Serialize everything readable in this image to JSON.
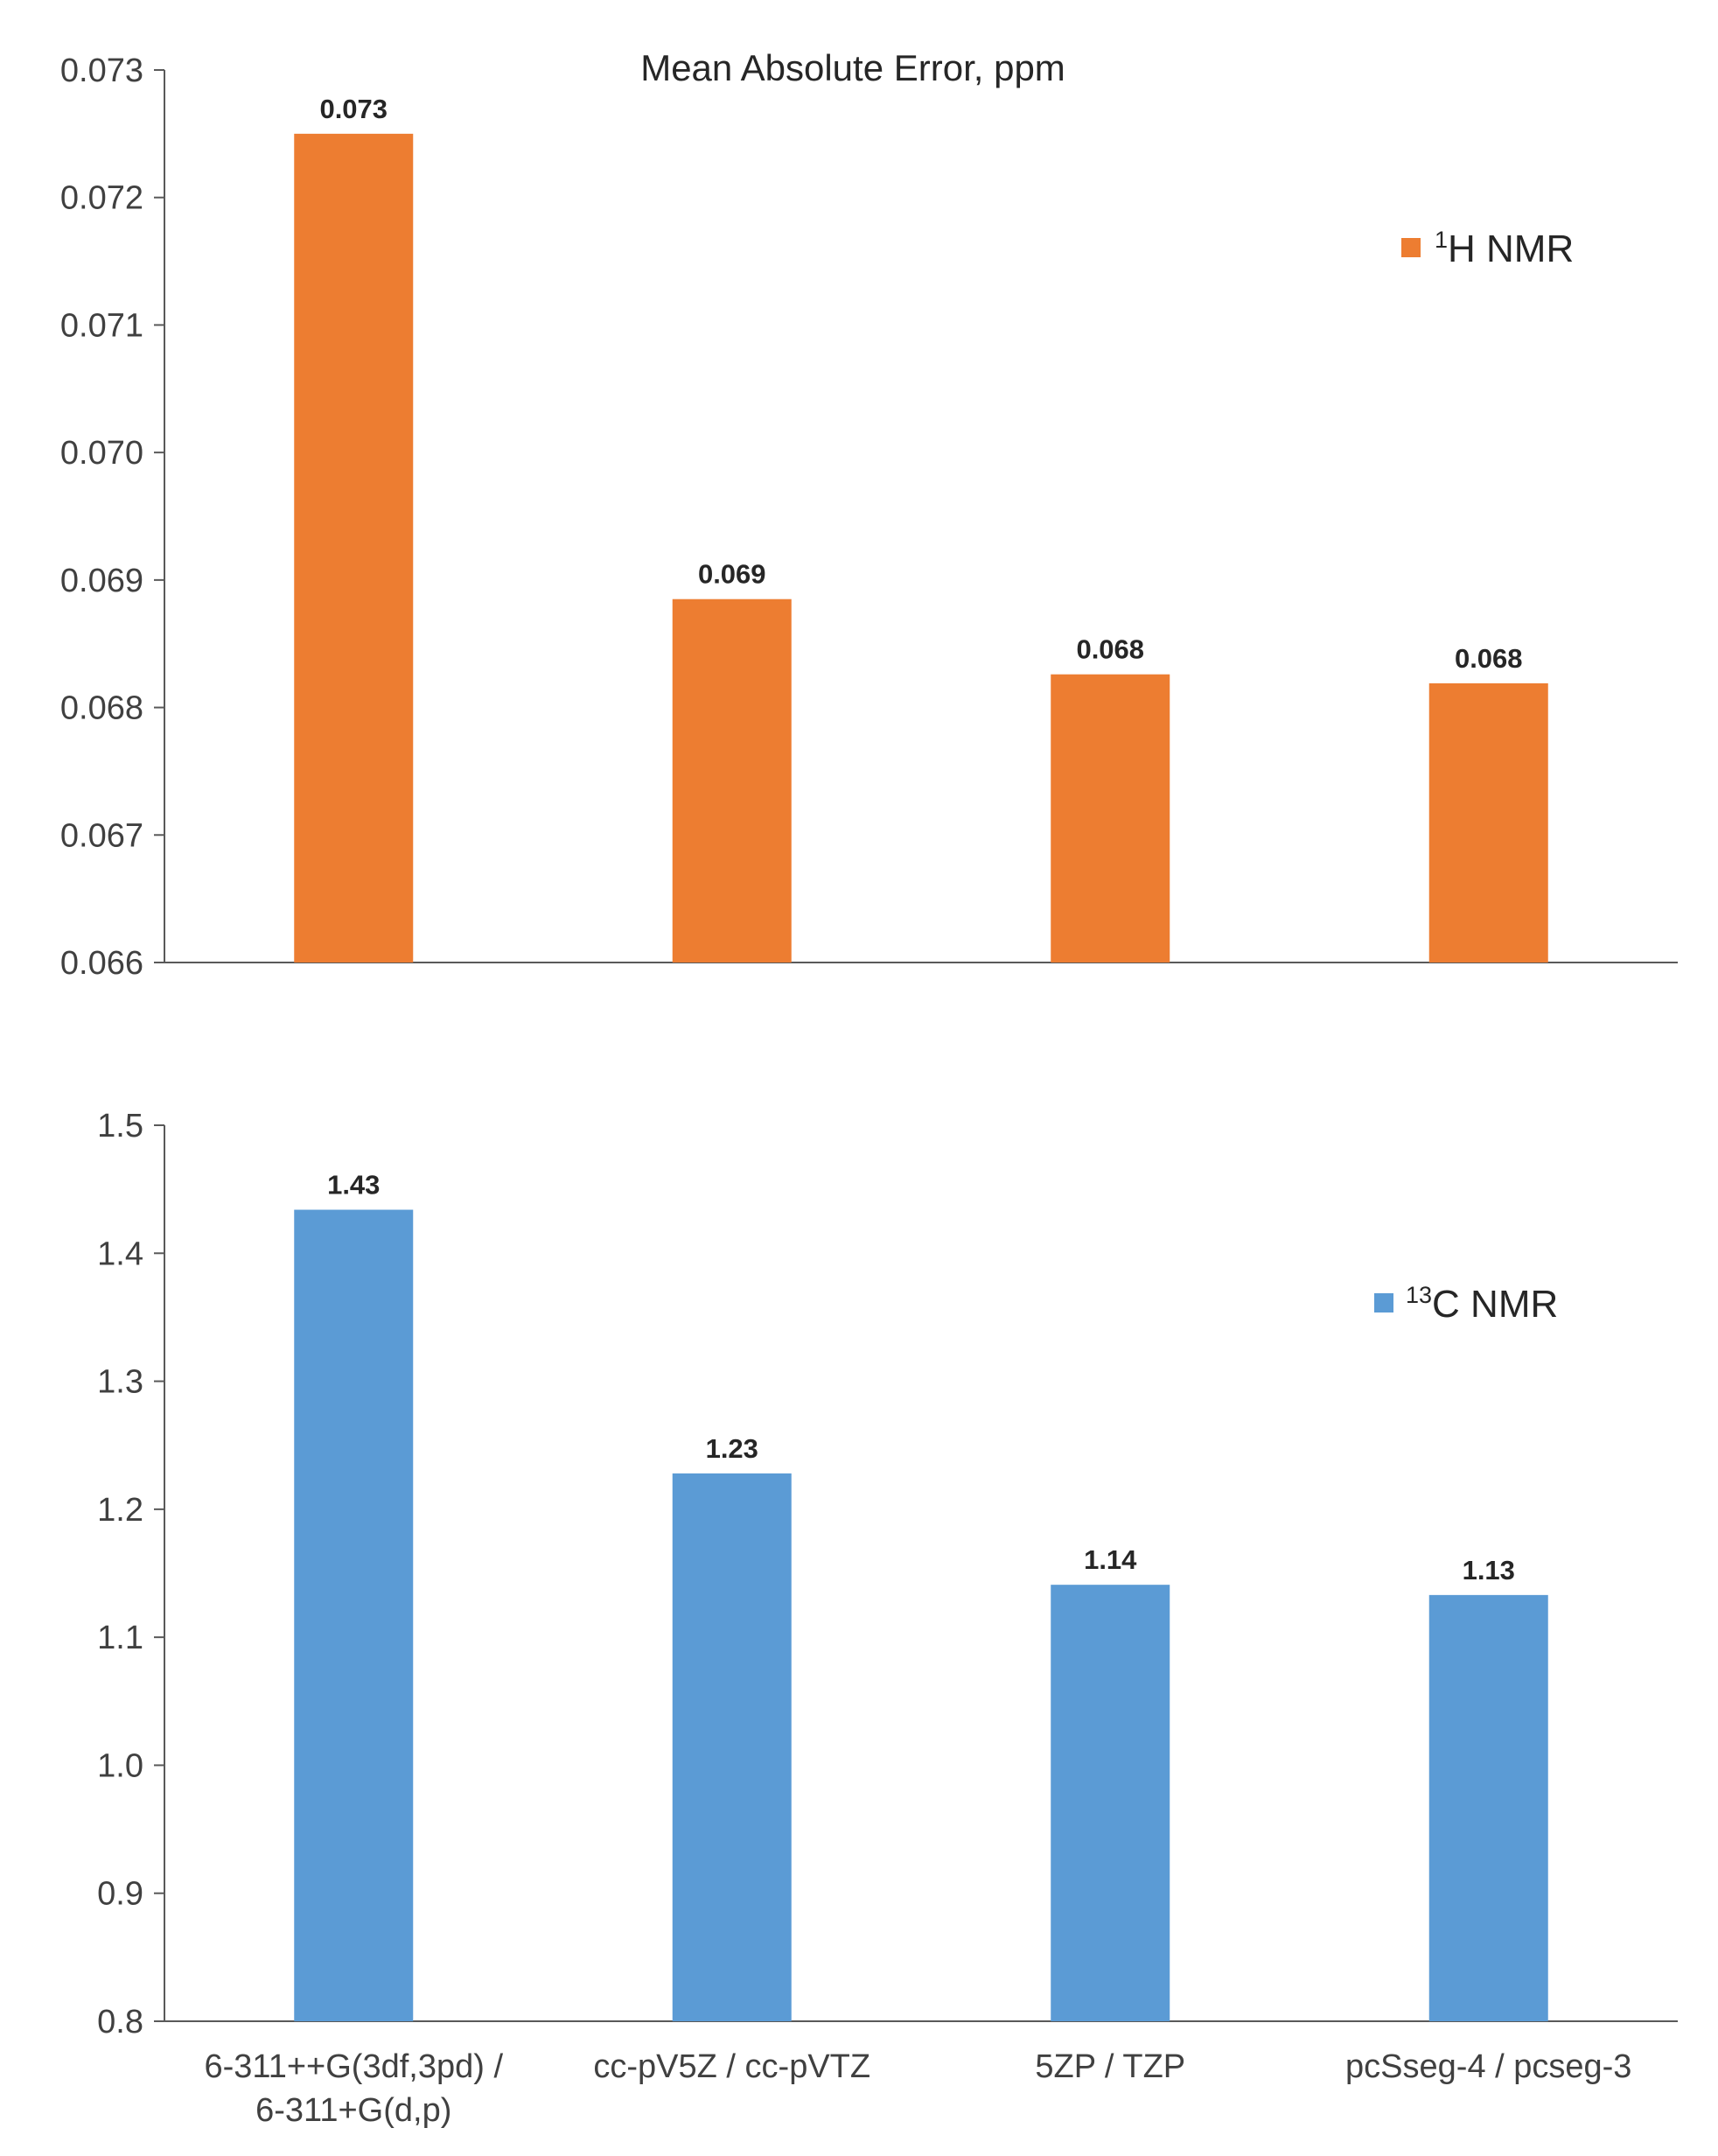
{
  "chart_data": [
    {
      "type": "bar",
      "title": "Mean Absolute Error, ppm",
      "xlabel": "",
      "ylabel": "",
      "categories": [
        "6-311++G(3df,3pd) / 6-311+G(d,p)",
        "cc-pV5Z / cc-pVTZ",
        "5ZP / TZP",
        "pcSseg-4 / pcseg-3"
      ],
      "series": [
        {
          "name": "1H NMR",
          "legend_sup": "1",
          "legend_main": "H NMR",
          "color": "#ED7D31",
          "values": [
            0.0725,
            0.06885,
            0.06826,
            0.06819
          ],
          "data_labels": [
            "0.073",
            "0.069",
            "0.068",
            "0.068"
          ]
        }
      ],
      "ylim": [
        0.066,
        0.073
      ],
      "yticks": [
        0.066,
        0.067,
        0.068,
        0.069,
        0.07,
        0.071,
        0.072,
        0.073
      ],
      "ytick_labels": [
        "0.066",
        "0.067",
        "0.068",
        "0.069",
        "0.070",
        "0.071",
        "0.072",
        "0.073"
      ],
      "grid": false,
      "legend_position": "top-right"
    },
    {
      "type": "bar",
      "title": "",
      "xlabel": "",
      "ylabel": "",
      "categories": [
        "6-311++G(3df,3pd) / 6-311+G(d,p)",
        "cc-pV5Z / cc-pVTZ",
        "5ZP / TZP",
        "pcSseg-4 / pcseg-3"
      ],
      "category_lines": [
        [
          "6-311++G(3df,3pd) /",
          "6-311+G(d,p)"
        ],
        [
          "cc-pV5Z / cc-pVTZ"
        ],
        [
          "5ZP / TZP"
        ],
        [
          "pcSseg-4 / pcseg-3"
        ]
      ],
      "series": [
        {
          "name": "13C NMR",
          "legend_sup": "13",
          "legend_main": "C NMR",
          "color": "#5B9BD5",
          "values": [
            1.434,
            1.228,
            1.141,
            1.133
          ],
          "data_labels": [
            "1.43",
            "1.23",
            "1.14",
            "1.13"
          ]
        }
      ],
      "ylim": [
        0.8,
        1.5
      ],
      "yticks": [
        0.8,
        0.9,
        1.0,
        1.1,
        1.2,
        1.3,
        1.4,
        1.5
      ],
      "ytick_labels": [
        "0.8",
        "0.9",
        "1.0",
        "1.1",
        "1.2",
        "1.3",
        "1.4",
        "1.5"
      ],
      "grid": false,
      "legend_position": "top-right"
    }
  ]
}
